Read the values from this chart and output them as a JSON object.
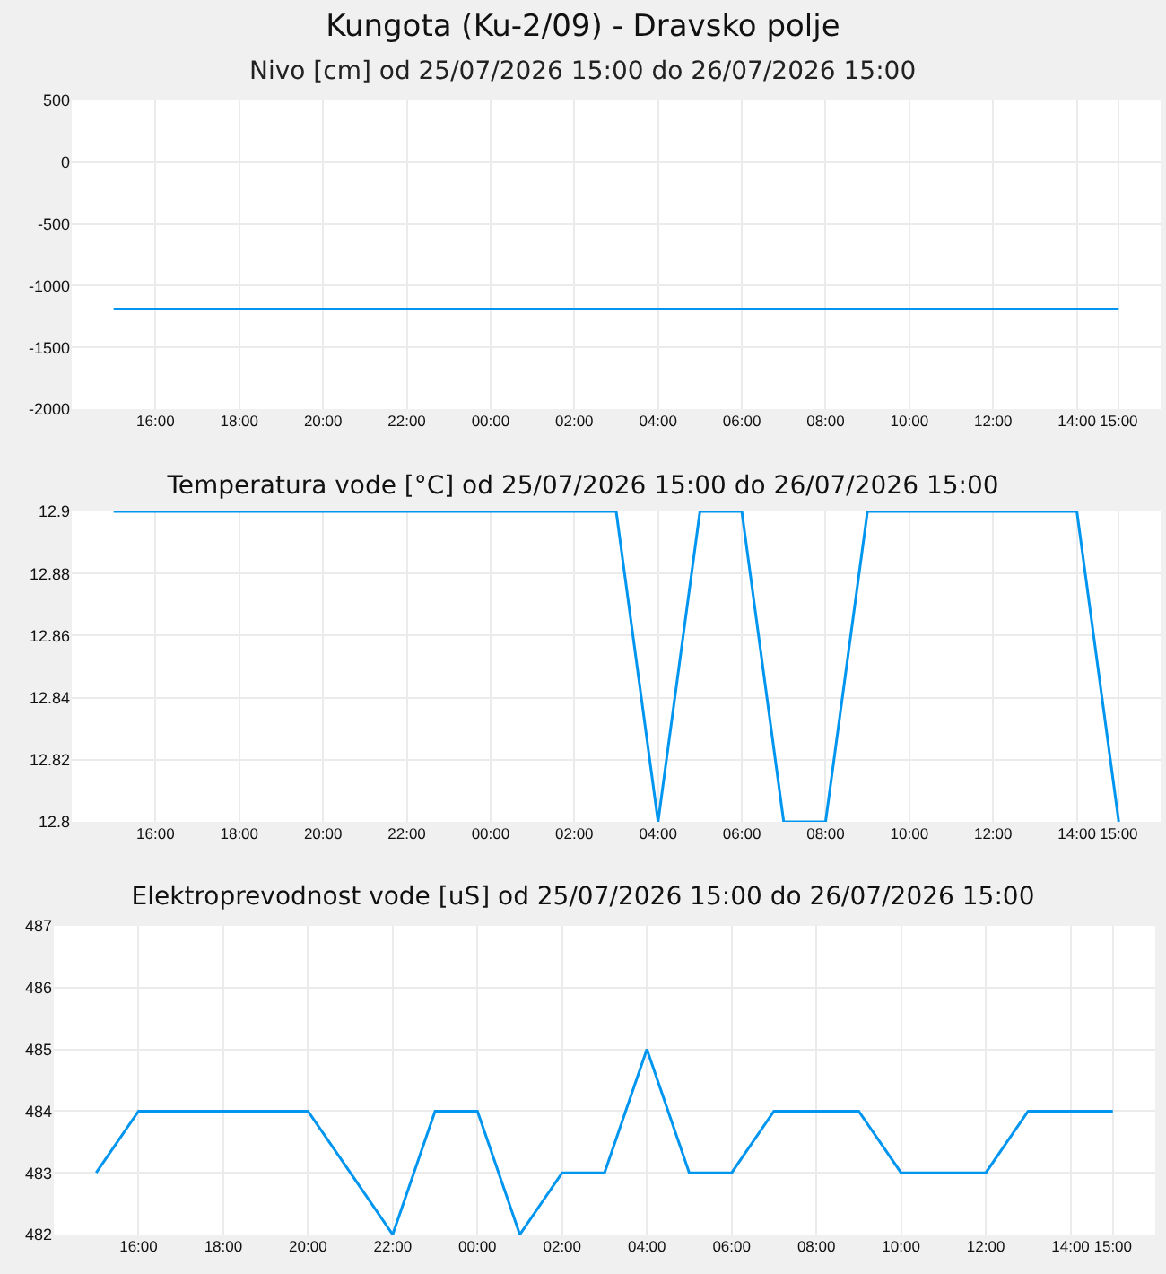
{
  "chart_data": [
    {
      "type": "line",
      "title": "Kungota (Ku-2/09) - Dravsko polje",
      "subtitle": "Nivo [cm] od 25/07/2026 15:00 do 26/07/2026 15:00",
      "x": [
        "2026-07-25T15:00",
        "2026-07-25T16:00",
        "2026-07-25T17:00",
        "2026-07-25T18:00",
        "2026-07-25T19:00",
        "2026-07-25T20:00",
        "2026-07-25T21:00",
        "2026-07-25T22:00",
        "2026-07-25T23:00",
        "2026-07-26T00:00",
        "2026-07-26T01:00",
        "2026-07-26T02:00",
        "2026-07-26T03:00",
        "2026-07-26T04:00",
        "2026-07-26T05:00",
        "2026-07-26T06:00",
        "2026-07-26T07:00",
        "2026-07-26T08:00",
        "2026-07-26T09:00",
        "2026-07-26T10:00",
        "2026-07-26T11:00",
        "2026-07-26T12:00",
        "2026-07-26T13:00",
        "2026-07-26T14:00",
        "2026-07-26T15:00"
      ],
      "values": [
        -1190,
        -1190,
        -1190,
        -1190,
        -1190,
        -1190,
        -1190,
        -1190,
        -1190,
        -1190,
        -1190,
        -1190,
        -1190,
        -1190,
        -1190,
        -1190,
        -1190,
        -1190,
        -1190,
        -1190,
        -1190,
        -1190,
        -1190,
        -1190,
        -1190
      ],
      "color": "#0096f0",
      "xlim": [
        "2026-07-25T14:00",
        "2026-07-26T16:00"
      ],
      "xticks": [
        {
          "value": "2026-07-25T16:00",
          "label": "16:00"
        },
        {
          "value": "2026-07-25T18:00",
          "label": "18:00"
        },
        {
          "value": "2026-07-25T20:00",
          "label": "20:00"
        },
        {
          "value": "2026-07-25T22:00",
          "label": "22:00"
        },
        {
          "value": "2026-07-26T00:00",
          "label": "00:00"
        },
        {
          "value": "2026-07-26T02:00",
          "label": "02:00"
        },
        {
          "value": "2026-07-26T04:00",
          "label": "04:00"
        },
        {
          "value": "2026-07-26T06:00",
          "label": "06:00"
        },
        {
          "value": "2026-07-26T08:00",
          "label": "08:00"
        },
        {
          "value": "2026-07-26T10:00",
          "label": "10:00"
        },
        {
          "value": "2026-07-26T12:00",
          "label": "12:00"
        },
        {
          "value": "2026-07-26T14:00",
          "label": "14:00"
        },
        {
          "value": "2026-07-26T15:00",
          "label": "15:00"
        }
      ],
      "ylim": [
        -2000,
        500
      ],
      "yticks": [
        500,
        0,
        -500,
        -1000,
        -1500,
        -2000
      ],
      "grid": true
    },
    {
      "type": "line",
      "title": "Temperatura vode [°C] od 25/07/2026 15:00 do 26/07/2026 15:00",
      "x": [
        "2026-07-25T15:00",
        "2026-07-25T16:00",
        "2026-07-25T17:00",
        "2026-07-25T18:00",
        "2026-07-25T19:00",
        "2026-07-25T20:00",
        "2026-07-25T21:00",
        "2026-07-25T22:00",
        "2026-07-25T23:00",
        "2026-07-26T00:00",
        "2026-07-26T01:00",
        "2026-07-26T02:00",
        "2026-07-26T03:00",
        "2026-07-26T04:00",
        "2026-07-26T05:00",
        "2026-07-26T06:00",
        "2026-07-26T07:00",
        "2026-07-26T08:00",
        "2026-07-26T09:00",
        "2026-07-26T10:00",
        "2026-07-26T11:00",
        "2026-07-26T12:00",
        "2026-07-26T13:00",
        "2026-07-26T14:00",
        "2026-07-26T15:00"
      ],
      "values": [
        12.9,
        12.9,
        12.9,
        12.9,
        12.9,
        12.9,
        12.9,
        12.9,
        12.9,
        12.9,
        12.9,
        12.9,
        12.9,
        12.8,
        12.9,
        12.9,
        12.8,
        12.8,
        12.9,
        12.9,
        12.9,
        12.9,
        12.9,
        12.9,
        12.8
      ],
      "color": "#0096f0",
      "xlim": [
        "2026-07-25T14:00",
        "2026-07-26T16:00"
      ],
      "xticks": [
        {
          "value": "2026-07-25T16:00",
          "label": "16:00"
        },
        {
          "value": "2026-07-25T18:00",
          "label": "18:00"
        },
        {
          "value": "2026-07-25T20:00",
          "label": "20:00"
        },
        {
          "value": "2026-07-25T22:00",
          "label": "22:00"
        },
        {
          "value": "2026-07-26T00:00",
          "label": "00:00"
        },
        {
          "value": "2026-07-26T02:00",
          "label": "02:00"
        },
        {
          "value": "2026-07-26T04:00",
          "label": "04:00"
        },
        {
          "value": "2026-07-26T06:00",
          "label": "06:00"
        },
        {
          "value": "2026-07-26T08:00",
          "label": "08:00"
        },
        {
          "value": "2026-07-26T10:00",
          "label": "10:00"
        },
        {
          "value": "2026-07-26T12:00",
          "label": "12:00"
        },
        {
          "value": "2026-07-26T14:00",
          "label": "14:00"
        },
        {
          "value": "2026-07-26T15:00",
          "label": "15:00"
        }
      ],
      "ylim": [
        12.8,
        12.9
      ],
      "yticks": [
        12.9,
        12.88,
        12.86,
        12.84,
        12.82,
        12.8
      ],
      "grid": true
    },
    {
      "type": "line",
      "title": "Elektroprevodnost vode [uS] od 25/07/2026 15:00 do 26/07/2026 15:00",
      "x": [
        "2026-07-25T15:00",
        "2026-07-25T16:00",
        "2026-07-25T17:00",
        "2026-07-25T18:00",
        "2026-07-25T19:00",
        "2026-07-25T20:00",
        "2026-07-25T21:00",
        "2026-07-25T22:00",
        "2026-07-25T23:00",
        "2026-07-26T00:00",
        "2026-07-26T01:00",
        "2026-07-26T02:00",
        "2026-07-26T03:00",
        "2026-07-26T04:00",
        "2026-07-26T05:00",
        "2026-07-26T06:00",
        "2026-07-26T07:00",
        "2026-07-26T08:00",
        "2026-07-26T09:00",
        "2026-07-26T10:00",
        "2026-07-26T11:00",
        "2026-07-26T12:00",
        "2026-07-26T13:00",
        "2026-07-26T14:00",
        "2026-07-26T15:00"
      ],
      "values": [
        483,
        484,
        484,
        484,
        484,
        484,
        483,
        482,
        484,
        484,
        482,
        483,
        483,
        485,
        483,
        483,
        484,
        484,
        484,
        483,
        483,
        483,
        484,
        484,
        484
      ],
      "color": "#0096f0",
      "xlim": [
        "2026-07-25T14:00",
        "2026-07-26T16:00"
      ],
      "xticks": [
        {
          "value": "2026-07-25T16:00",
          "label": "16:00"
        },
        {
          "value": "2026-07-25T18:00",
          "label": "18:00"
        },
        {
          "value": "2026-07-25T20:00",
          "label": "20:00"
        },
        {
          "value": "2026-07-25T22:00",
          "label": "22:00"
        },
        {
          "value": "2026-07-26T00:00",
          "label": "00:00"
        },
        {
          "value": "2026-07-26T02:00",
          "label": "02:00"
        },
        {
          "value": "2026-07-26T04:00",
          "label": "04:00"
        },
        {
          "value": "2026-07-26T06:00",
          "label": "06:00"
        },
        {
          "value": "2026-07-26T08:00",
          "label": "08:00"
        },
        {
          "value": "2026-07-26T10:00",
          "label": "10:00"
        },
        {
          "value": "2026-07-26T12:00",
          "label": "12:00"
        },
        {
          "value": "2026-07-26T14:00",
          "label": "14:00"
        },
        {
          "value": "2026-07-26T15:00",
          "label": "15:00"
        }
      ],
      "ylim": [
        482,
        487
      ],
      "yticks": [
        482,
        483,
        484,
        485,
        486,
        487
      ],
      "grid": true
    }
  ]
}
